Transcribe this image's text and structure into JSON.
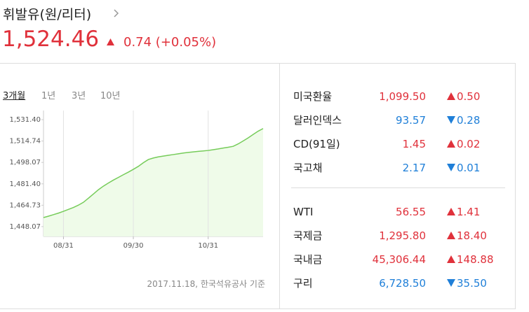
{
  "header": {
    "title": "휘발유(원/리터)",
    "price": "1,524.46",
    "change": "0.74 (+0.05%)",
    "direction": "up"
  },
  "tabs": [
    "3개월",
    "1년",
    "3년",
    "10년"
  ],
  "chart_data": {
    "type": "line",
    "categories": [
      null,
      null,
      null,
      null,
      "08/31",
      null,
      null,
      null,
      null,
      null,
      null,
      null,
      null,
      null,
      null,
      null,
      null,
      null,
      "09/30",
      null,
      null,
      null,
      null,
      null,
      null,
      null,
      null,
      null,
      null,
      null,
      null,
      null,
      null,
      "10/31",
      null,
      null,
      null,
      null,
      null,
      null,
      null,
      null,
      null,
      null,
      null
    ],
    "values": [
      1455.1,
      1456.2,
      1457.4,
      1458.6,
      1460.0,
      1461.5,
      1463.0,
      1464.8,
      1467.0,
      1470.2,
      1473.5,
      1476.8,
      1479.6,
      1482.0,
      1484.3,
      1486.4,
      1488.5,
      1490.5,
      1492.7,
      1495.0,
      1497.8,
      1500.3,
      1501.5,
      1502.4,
      1503.0,
      1503.6,
      1504.2,
      1504.8,
      1505.4,
      1505.9,
      1506.3,
      1506.7,
      1507.0,
      1507.4,
      1508.0,
      1508.6,
      1509.3,
      1509.9,
      1510.6,
      1512.5,
      1514.8,
      1517.2,
      1519.8,
      1522.4,
      1524.46
    ],
    "ylim": [
      1440.4,
      1538.5
    ],
    "yticks": [
      {
        "value": 1448.07,
        "label": "1,448.07"
      },
      {
        "value": 1464.73,
        "label": "1,464.73"
      },
      {
        "value": 1481.4,
        "label": "1,481.40"
      },
      {
        "value": 1498.07,
        "label": "1,498.07"
      },
      {
        "value": 1514.74,
        "label": "1,514.74"
      },
      {
        "value": 1531.4,
        "label": "1,531.40"
      }
    ],
    "xgrid": true,
    "color": "#76cc5a",
    "fill": "#effbe9"
  },
  "source": "2017.11.18, 한국석유공사 기준",
  "market": {
    "groups": [
      [
        {
          "name": "미국환율",
          "value": "1,099.50",
          "change": "0.50",
          "direction": "up"
        },
        {
          "name": "달러인덱스",
          "value": "93.57",
          "change": "0.28",
          "direction": "down"
        },
        {
          "name": "CD(91일)",
          "value": "1.45",
          "change": "0.02",
          "direction": "up"
        },
        {
          "name": "국고채",
          "value": "2.17",
          "change": "0.01",
          "direction": "down"
        }
      ],
      [
        {
          "name": "WTI",
          "value": "56.55",
          "change": "1.41",
          "direction": "up"
        },
        {
          "name": "국제금",
          "value": "1,295.80",
          "change": "18.40",
          "direction": "up"
        },
        {
          "name": "국내금",
          "value": "45,306.44",
          "change": "148.88",
          "direction": "up"
        },
        {
          "name": "구리",
          "value": "6,728.50",
          "change": "35.50",
          "direction": "down"
        }
      ]
    ]
  }
}
